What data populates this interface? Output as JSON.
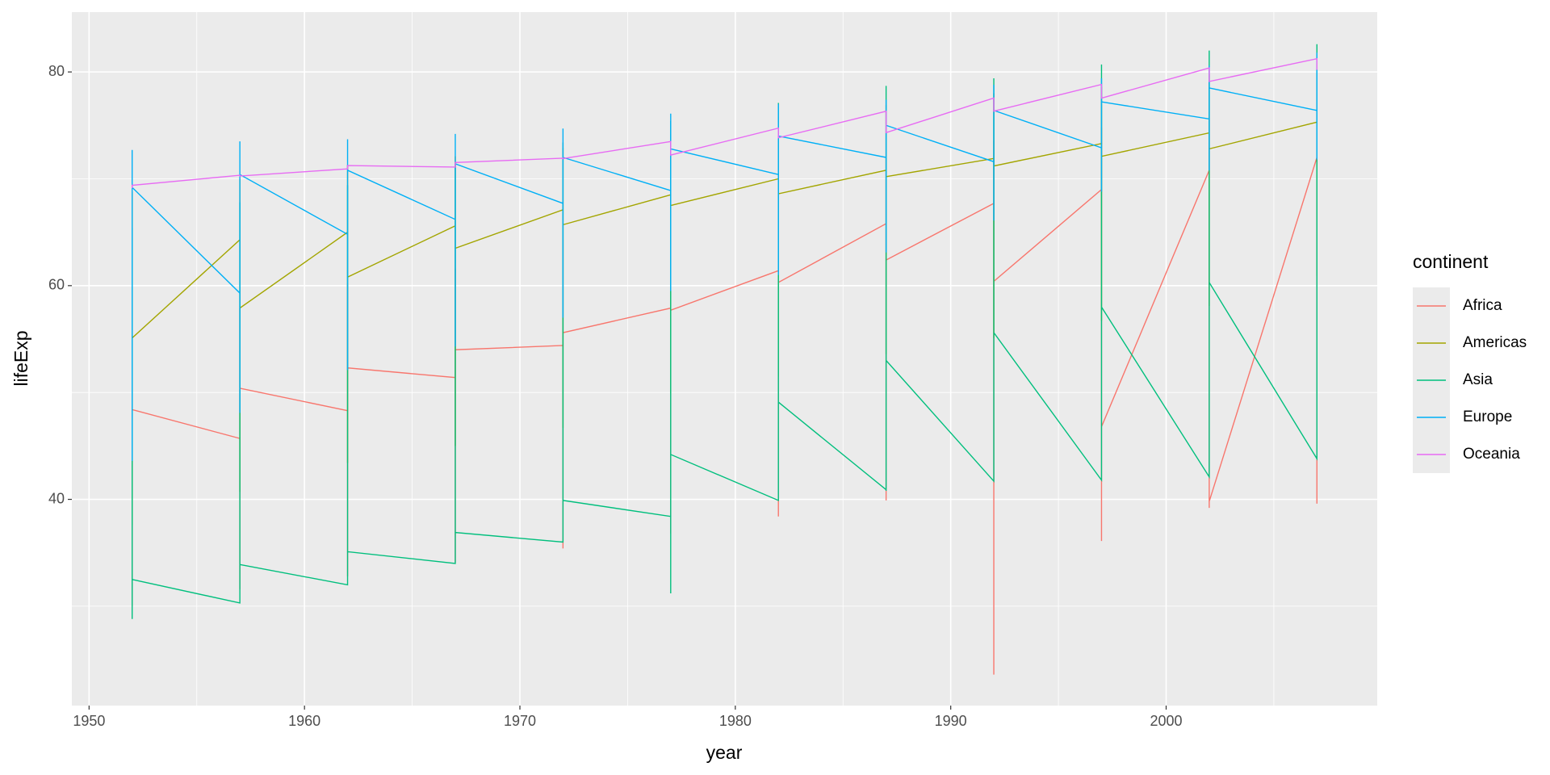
{
  "chart_data": {
    "type": "line",
    "x_label": "year",
    "y_label": "lifeExp",
    "legend_title": "continent",
    "xlim": [
      1949.2,
      2009.8
    ],
    "ylim": [
      20.7,
      85.6
    ],
    "xticks": [
      1950,
      1960,
      1970,
      1980,
      1990,
      2000
    ],
    "yticks": [
      40,
      60,
      80
    ],
    "grid": true,
    "legend": "right",
    "series": [
      {
        "name": "Africa",
        "color": "#F8766D",
        "x": [
          1952,
          1952,
          1952,
          1952,
          1957,
          1957,
          1957,
          1957,
          1962,
          1962,
          1962,
          1962,
          1967,
          1967,
          1967,
          1967,
          1972,
          1972,
          1972,
          1972,
          1977,
          1977,
          1977,
          1977,
          1982,
          1982,
          1982,
          1982,
          1987,
          1987,
          1987,
          1987,
          1992,
          1992,
          1992,
          1992,
          1997,
          1997,
          1997,
          1997,
          2002,
          2002,
          2002,
          2002,
          2007,
          2007,
          2007,
          2007
        ],
        "values": [
          43.1,
          30.0,
          52.7,
          48.4,
          45.7,
          31.6,
          58.1,
          50.4,
          48.3,
          32.8,
          60.2,
          52.3,
          51.4,
          34.1,
          61.6,
          54.0,
          54.4,
          35.4,
          64.3,
          55.6,
          57.9,
          36.8,
          67.1,
          57.7,
          61.4,
          38.4,
          69.9,
          60.3,
          65.8,
          39.9,
          71.9,
          62.4,
          67.7,
          23.6,
          73.6,
          60.4,
          69.0,
          36.1,
          74.8,
          46.8,
          70.8,
          39.2,
          75.7,
          39.8,
          72.0,
          39.6,
          76.4,
          43.5
        ]
      },
      {
        "name": "Americas",
        "color": "#A3A500",
        "x": [
          1952,
          1952,
          1952,
          1952,
          1957,
          1957,
          1957,
          1957,
          1962,
          1962,
          1962,
          1962,
          1967,
          1967,
          1967,
          1967,
          1972,
          1972,
          1972,
          1972,
          1977,
          1977,
          1977,
          1977,
          1982,
          1982,
          1982,
          1982,
          1987,
          1987,
          1987,
          1987,
          1992,
          1992,
          1992,
          1992,
          1997,
          1997,
          1997,
          1997,
          2002,
          2002,
          2002,
          2002,
          2007,
          2007,
          2007,
          2007
        ],
        "values": [
          62.5,
          37.6,
          68.8,
          55.1,
          64.3,
          40.7,
          70.0,
          57.9,
          65.0,
          43.4,
          71.3,
          60.8,
          65.6,
          45.0,
          72.1,
          63.5,
          67.1,
          46.7,
          72.9,
          65.7,
          68.5,
          49.9,
          74.2,
          67.5,
          70.0,
          51.5,
          75.8,
          68.6,
          70.8,
          53.6,
          76.9,
          70.2,
          71.9,
          55.1,
          78.0,
          71.2,
          73.3,
          56.7,
          78.6,
          72.1,
          74.3,
          58.1,
          79.8,
          72.8,
          75.3,
          60.9,
          80.7,
          73.7
        ]
      },
      {
        "name": "Asia",
        "color": "#00BF7D",
        "x": [
          1952,
          1952,
          1952,
          1952,
          1957,
          1957,
          1957,
          1957,
          1962,
          1962,
          1962,
          1962,
          1967,
          1967,
          1967,
          1967,
          1972,
          1972,
          1972,
          1972,
          1977,
          1977,
          1977,
          1977,
          1982,
          1982,
          1982,
          1982,
          1987,
          1987,
          1987,
          1987,
          1992,
          1992,
          1992,
          1992,
          1997,
          1997,
          1997,
          1997,
          2002,
          2002,
          2002,
          2002,
          2007,
          2007,
          2007,
          2007
        ],
        "values": [
          28.8,
          28.8,
          65.4,
          32.5,
          30.3,
          30.3,
          67.8,
          33.9,
          32.0,
          32.0,
          69.4,
          35.1,
          34.0,
          34.0,
          71.4,
          36.9,
          36.0,
          36.0,
          73.4,
          39.9,
          38.4,
          31.2,
          75.4,
          44.2,
          39.9,
          39.9,
          77.1,
          49.1,
          40.9,
          40.8,
          78.7,
          53.0,
          41.7,
          41.7,
          79.4,
          55.6,
          41.8,
          41.8,
          80.7,
          58.0,
          42.1,
          42.1,
          82.0,
          60.3,
          43.8,
          43.8,
          82.6,
          62.7
        ]
      },
      {
        "name": "Europe",
        "color": "#00B0F6",
        "x": [
          1952,
          1952,
          1952,
          1952,
          1957,
          1957,
          1957,
          1957,
          1962,
          1962,
          1962,
          1962,
          1967,
          1967,
          1967,
          1967,
          1972,
          1972,
          1972,
          1972,
          1977,
          1977,
          1977,
          1977,
          1982,
          1982,
          1982,
          1982,
          1987,
          1987,
          1987,
          1987,
          1992,
          1992,
          1992,
          1992,
          1997,
          1997,
          1997,
          1997,
          2002,
          2002,
          2002,
          2002,
          2007,
          2007,
          2007,
          2007
        ],
        "values": [
          55.2,
          43.6,
          72.7,
          69.2,
          59.3,
          48.1,
          73.5,
          70.4,
          64.8,
          52.1,
          73.7,
          70.8,
          66.2,
          54.3,
          74.2,
          71.4,
          67.7,
          57.0,
          74.7,
          72.0,
          68.9,
          59.5,
          76.1,
          72.8,
          70.4,
          61.0,
          77.0,
          74.0,
          72.0,
          63.1,
          77.4,
          75.0,
          71.6,
          66.1,
          78.8,
          76.4,
          72.9,
          68.8,
          79.4,
          77.2,
          75.6,
          70.8,
          80.6,
          78.5,
          76.4,
          71.8,
          81.8,
          79.5
        ]
      },
      {
        "name": "Oceania",
        "color": "#E76BF3",
        "x": [
          1952,
          1952,
          1957,
          1957,
          1962,
          1962,
          1967,
          1967,
          1972,
          1972,
          1977,
          1977,
          1982,
          1982,
          1987,
          1987,
          1992,
          1992,
          1997,
          1997,
          2002,
          2002,
          2007,
          2007
        ],
        "values": [
          69.12,
          69.39,
          70.33,
          70.26,
          70.93,
          71.24,
          71.1,
          71.52,
          71.93,
          71.89,
          73.49,
          72.22,
          74.74,
          73.84,
          76.32,
          74.32,
          77.56,
          76.33,
          78.83,
          77.55,
          80.37,
          79.11,
          81.24,
          80.2
        ]
      }
    ]
  }
}
